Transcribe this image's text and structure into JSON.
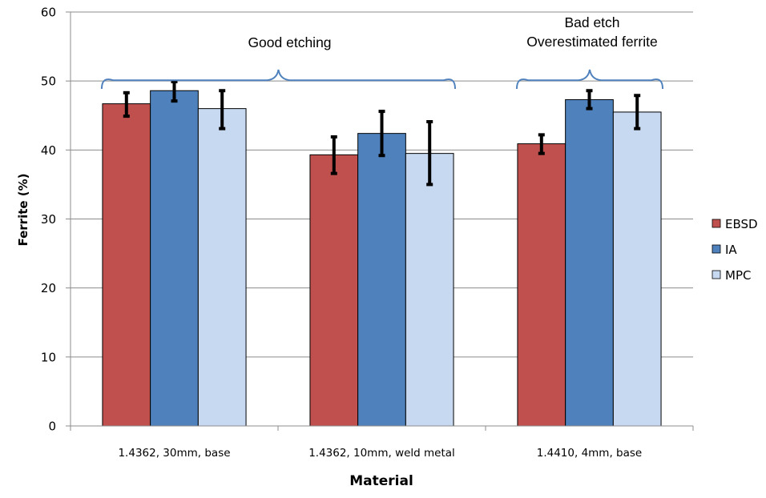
{
  "chart_data": {
    "type": "bar",
    "title": "",
    "xlabel": "Material",
    "ylabel": "Ferrite (%)",
    "ylim": [
      0,
      60
    ],
    "yticks": [
      0,
      10,
      20,
      30,
      40,
      50,
      60
    ],
    "ytick_labels": [
      "0",
      "10",
      "20",
      "30",
      "40",
      "50",
      "60"
    ],
    "grid": true,
    "categories": [
      "1.4362, 30mm, base",
      "1.4362, 10mm, weld metal",
      "1.4410, 4mm, base"
    ],
    "series": [
      {
        "name": "EBSD",
        "color": "#C0504D",
        "values": [
          46.7,
          39.3,
          40.9
        ],
        "err_low": [
          44.9,
          36.6,
          39.5
        ],
        "err_high": [
          48.3,
          41.9,
          42.2
        ]
      },
      {
        "name": "IA",
        "color": "#4F81BD",
        "values": [
          48.6,
          42.4,
          47.3
        ],
        "err_low": [
          47.1,
          39.2,
          46.0
        ],
        "err_high": [
          49.9,
          45.6,
          48.6
        ]
      },
      {
        "name": "MPC",
        "color": "#C6D9F1",
        "values": [
          46.0,
          39.5,
          45.5
        ],
        "err_low": [
          43.1,
          35.0,
          43.1
        ],
        "err_high": [
          48.6,
          44.1,
          47.9
        ]
      }
    ],
    "legend": {
      "position": "right",
      "entries": [
        "EBSD",
        "IA",
        "MPC"
      ]
    },
    "annotations": [
      {
        "text_lines": [
          "Good etching"
        ],
        "spans_categories": [
          0,
          1
        ],
        "type": "brace"
      },
      {
        "text_lines": [
          "Bad etch",
          "Overestimated ferrite"
        ],
        "spans_categories": [
          2,
          2
        ],
        "type": "brace"
      }
    ],
    "brace_color": "#4F81BD"
  }
}
